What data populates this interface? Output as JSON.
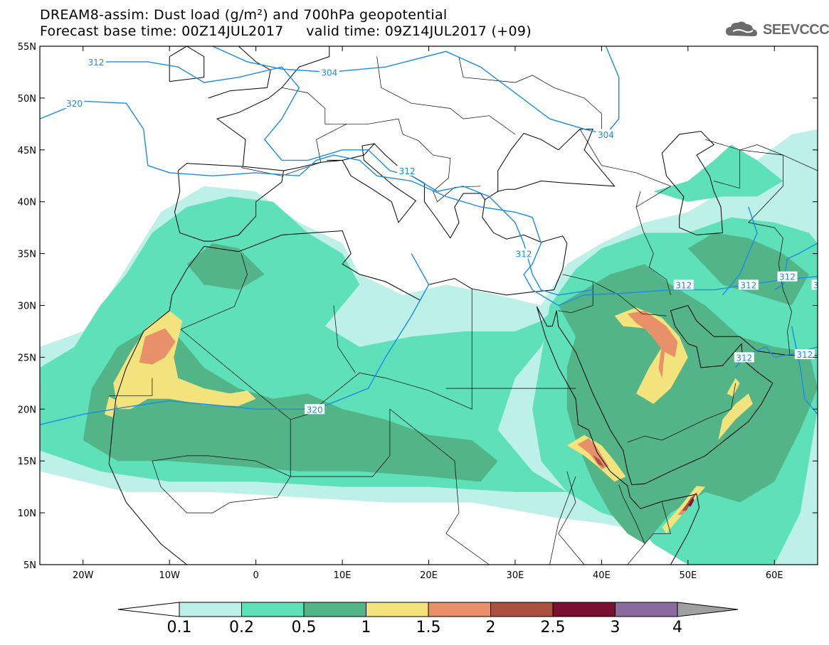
{
  "header": {
    "title_line1": "DREAM8-assim: Dust load (g/m²) and 700hPa geopotential",
    "title_line2": "Forecast base time: 00Z14JUL2017     valid time: 09Z14JUL2017 (+09)",
    "logo_text": "SEEVCCC"
  },
  "map": {
    "lon_range": [
      -25,
      65
    ],
    "lat_range": [
      5,
      55
    ],
    "lat_ticks": [
      {
        "value": 55,
        "label": "55N"
      },
      {
        "value": 50,
        "label": "50N"
      },
      {
        "value": 45,
        "label": "45N"
      },
      {
        "value": 40,
        "label": "40N"
      },
      {
        "value": 35,
        "label": "35N"
      },
      {
        "value": 30,
        "label": "30N"
      },
      {
        "value": 25,
        "label": "25N"
      },
      {
        "value": 20,
        "label": "20N"
      },
      {
        "value": 15,
        "label": "15N"
      },
      {
        "value": 10,
        "label": "10N"
      },
      {
        "value": 5,
        "label": "5N"
      }
    ],
    "lon_ticks": [
      {
        "value": -20,
        "label": "20W"
      },
      {
        "value": -10,
        "label": "10W"
      },
      {
        "value": 0,
        "label": "0"
      },
      {
        "value": 10,
        "label": "10E"
      },
      {
        "value": 20,
        "label": "20E"
      },
      {
        "value": 30,
        "label": "30E"
      },
      {
        "value": 40,
        "label": "40E"
      },
      {
        "value": 50,
        "label": "50E"
      },
      {
        "value": 60,
        "label": "60E"
      }
    ],
    "contour_labels": [
      {
        "text": "312",
        "lon": -18.5,
        "lat": 53.5
      },
      {
        "text": "304",
        "lon": 8.5,
        "lat": 52.5
      },
      {
        "text": "320",
        "lon": -21,
        "lat": 49.5
      },
      {
        "text": "304",
        "lon": 40.5,
        "lat": 46.5
      },
      {
        "text": "312",
        "lon": 17.5,
        "lat": 43.0
      },
      {
        "text": "312",
        "lon": 31,
        "lat": 35.0
      },
      {
        "text": "312",
        "lon": 49.5,
        "lat": 32.0
      },
      {
        "text": "312",
        "lon": 57.0,
        "lat": 32.0
      },
      {
        "text": "312",
        "lon": 61.5,
        "lat": 32.8
      },
      {
        "text": "3",
        "lon": 64.8,
        "lat": 32.0
      },
      {
        "text": "312",
        "lon": 56.5,
        "lat": 25.0
      },
      {
        "text": "312",
        "lon": 63.5,
        "lat": 25.3
      },
      {
        "text": "320",
        "lon": 6.8,
        "lat": 20.0
      }
    ],
    "colors": {
      "c01_02": "#bdf0e6",
      "c02_05": "#5ee0b8",
      "c05_1": "#53b488",
      "c1_15": "#f3e37c",
      "c15_2": "#e8906a",
      "c2_25": "#a95041",
      "c25_3": "#7a1030",
      "c3_4": "#8b6b9f",
      "c4p": "#a0a0a0",
      "contour": "#1a8ce8"
    }
  },
  "colorbar": {
    "labels": [
      "0.1",
      "0.2",
      "0.5",
      "1",
      "1.5",
      "2",
      "2.5",
      "3",
      "4"
    ],
    "colors": [
      "#bdf0e6",
      "#5ee0b8",
      "#53b488",
      "#f3e37c",
      "#e8906a",
      "#a95041",
      "#7a1030",
      "#8b6b9f"
    ],
    "min_color": "#ffffff",
    "max_color": "#a0a0a0"
  }
}
